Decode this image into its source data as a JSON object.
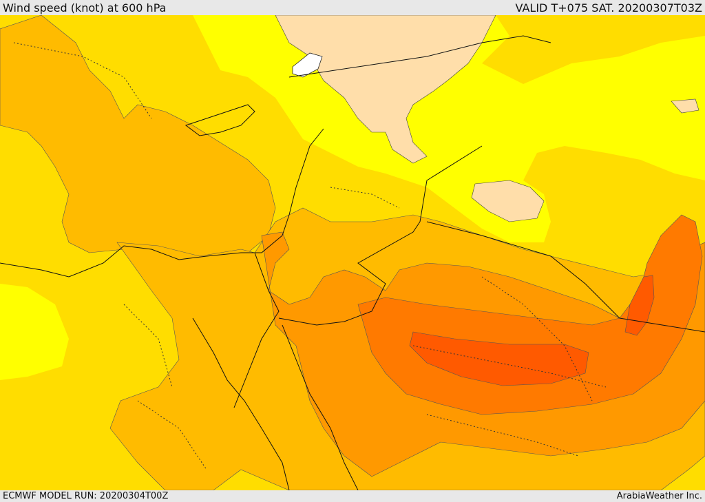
{
  "header": {
    "title": "Wind speed (knot) at 600 hPa",
    "valid_time": "VALID T+075 SAT. 20200307T03Z"
  },
  "footer": {
    "model_run": "ECMWF MODEL RUN: 20200304T00Z",
    "credit": "ArabiaWeather Inc."
  },
  "map": {
    "field": "wind-speed",
    "level": "600 hPa",
    "colors": {
      "very_light": "#ffdeaa",
      "light": "#ffff00",
      "yellow_orange": "#ffdd00",
      "orange_light": "#ffbb00",
      "orange": "#ff9900",
      "orange_dark": "#ff7a00",
      "red_orange": "#ff5a00",
      "water_white": "#ffffff",
      "border": "#111111"
    }
  }
}
